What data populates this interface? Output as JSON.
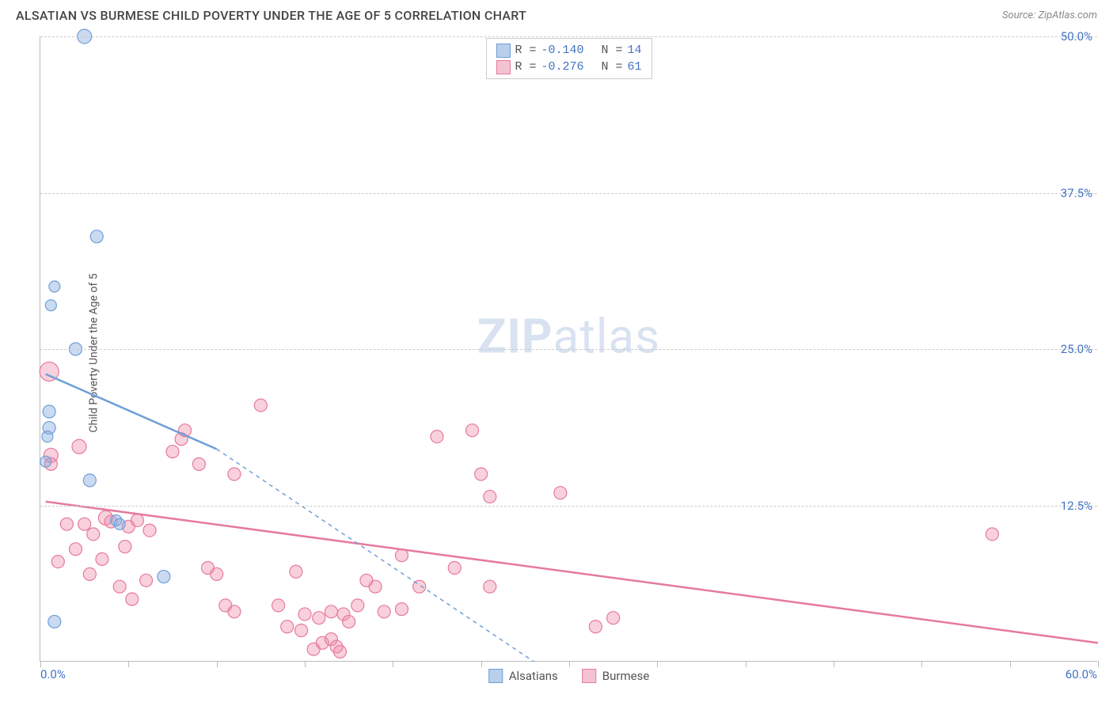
{
  "header": {
    "title": "ALSATIAN VS BURMESE CHILD POVERTY UNDER THE AGE OF 5 CORRELATION CHART",
    "source_prefix": "Source: ",
    "source_name": "ZipAtlas.com"
  },
  "watermark": {
    "bold": "ZIP",
    "rest": "atlas"
  },
  "chart": {
    "type": "scatter",
    "y_axis_label": "Child Poverty Under the Age of 5",
    "xlim": [
      0,
      60
    ],
    "ylim": [
      0,
      50
    ],
    "xtick_step": 5,
    "grid_color": "#cccccc",
    "axis_color": "#bbbbbb",
    "tick_label_color": "#4472c4",
    "background_color": "#ffffff",
    "y_ticks": [
      {
        "v": 50.0,
        "label": "50.0%"
      },
      {
        "v": 37.5,
        "label": "37.5%"
      },
      {
        "v": 25.0,
        "label": "25.0%"
      },
      {
        "v": 12.5,
        "label": "12.5%"
      }
    ],
    "xlim_labels": {
      "min": "0.0%",
      "max": "60.0%"
    }
  },
  "series": {
    "alsatians": {
      "label": "Alsatians",
      "fill": "rgba(137,174,225,0.45)",
      "stroke": "#6f9fd8",
      "swatch_fill": "#b8d0ec",
      "swatch_stroke": "#6f9fd8",
      "R": "-0.140",
      "N": "14",
      "marker_r": 8,
      "trend": {
        "solid": {
          "x1": 0.3,
          "y1": 23.0,
          "x2": 10.0,
          "y2": 17.0
        },
        "dashed": {
          "x1": 10.0,
          "y1": 17.0,
          "x2": 28.0,
          "y2": 0.0
        },
        "width": 2.5
      },
      "points": [
        {
          "x": 2.5,
          "y": 50.0,
          "r": 9
        },
        {
          "x": 3.2,
          "y": 34.0,
          "r": 8
        },
        {
          "x": 0.8,
          "y": 30.0,
          "r": 7
        },
        {
          "x": 0.6,
          "y": 28.5,
          "r": 7
        },
        {
          "x": 2.0,
          "y": 25.0,
          "r": 8
        },
        {
          "x": 0.5,
          "y": 20.0,
          "r": 8
        },
        {
          "x": 0.5,
          "y": 18.7,
          "r": 8
        },
        {
          "x": 0.4,
          "y": 18.0,
          "r": 7
        },
        {
          "x": 0.3,
          "y": 16.0,
          "r": 7
        },
        {
          "x": 2.8,
          "y": 14.5,
          "r": 8
        },
        {
          "x": 4.3,
          "y": 11.3,
          "r": 7
        },
        {
          "x": 4.5,
          "y": 11.0,
          "r": 7
        },
        {
          "x": 7.0,
          "y": 6.8,
          "r": 8
        },
        {
          "x": 0.8,
          "y": 3.2,
          "r": 8
        }
      ]
    },
    "burmese": {
      "label": "Burmese",
      "fill": "rgba(238,140,168,0.40)",
      "stroke": "#e67a9c",
      "swatch_fill": "#f4c3d2",
      "swatch_stroke": "#e67a9c",
      "R": "-0.276",
      "N": "61",
      "marker_r": 8,
      "trend": {
        "solid": {
          "x1": 0.3,
          "y1": 12.8,
          "x2": 60.0,
          "y2": 1.5
        },
        "width": 2.5
      },
      "points": [
        {
          "x": 0.5,
          "y": 23.2,
          "r": 12
        },
        {
          "x": 0.6,
          "y": 16.5,
          "r": 9
        },
        {
          "x": 0.6,
          "y": 15.8,
          "r": 8
        },
        {
          "x": 2.2,
          "y": 17.2,
          "r": 9
        },
        {
          "x": 3.7,
          "y": 11.5,
          "r": 9
        },
        {
          "x": 1.5,
          "y": 11.0,
          "r": 8
        },
        {
          "x": 2.5,
          "y": 11.0,
          "r": 8
        },
        {
          "x": 3.0,
          "y": 10.2,
          "r": 8
        },
        {
          "x": 4.0,
          "y": 11.2,
          "r": 8
        },
        {
          "x": 2.0,
          "y": 9.0,
          "r": 8
        },
        {
          "x": 3.5,
          "y": 8.2,
          "r": 8
        },
        {
          "x": 4.8,
          "y": 9.2,
          "r": 8
        },
        {
          "x": 5.0,
          "y": 10.8,
          "r": 8
        },
        {
          "x": 5.5,
          "y": 11.3,
          "r": 8
        },
        {
          "x": 6.0,
          "y": 6.5,
          "r": 8
        },
        {
          "x": 6.2,
          "y": 10.5,
          "r": 8
        },
        {
          "x": 7.5,
          "y": 16.8,
          "r": 8
        },
        {
          "x": 8.0,
          "y": 17.8,
          "r": 8
        },
        {
          "x": 8.2,
          "y": 18.5,
          "r": 8
        },
        {
          "x": 9.0,
          "y": 15.8,
          "r": 8
        },
        {
          "x": 9.5,
          "y": 7.5,
          "r": 8
        },
        {
          "x": 10.0,
          "y": 7.0,
          "r": 8
        },
        {
          "x": 10.5,
          "y": 4.5,
          "r": 8
        },
        {
          "x": 11.0,
          "y": 15.0,
          "r": 8
        },
        {
          "x": 11.0,
          "y": 4.0,
          "r": 8
        },
        {
          "x": 12.5,
          "y": 20.5,
          "r": 8
        },
        {
          "x": 13.5,
          "y": 4.5,
          "r": 8
        },
        {
          "x": 14.0,
          "y": 2.8,
          "r": 8
        },
        {
          "x": 14.5,
          "y": 7.2,
          "r": 8
        },
        {
          "x": 14.8,
          "y": 2.5,
          "r": 8
        },
        {
          "x": 15.0,
          "y": 3.8,
          "r": 8
        },
        {
          "x": 15.5,
          "y": 1.0,
          "r": 8
        },
        {
          "x": 15.8,
          "y": 3.5,
          "r": 8
        },
        {
          "x": 16.0,
          "y": 1.5,
          "r": 8
        },
        {
          "x": 16.5,
          "y": 4.0,
          "r": 8
        },
        {
          "x": 16.5,
          "y": 1.8,
          "r": 8
        },
        {
          "x": 16.8,
          "y": 1.2,
          "r": 8
        },
        {
          "x": 17.0,
          "y": 0.8,
          "r": 8
        },
        {
          "x": 17.2,
          "y": 3.8,
          "r": 8
        },
        {
          "x": 17.5,
          "y": 3.2,
          "r": 8
        },
        {
          "x": 18.0,
          "y": 4.5,
          "r": 8
        },
        {
          "x": 18.5,
          "y": 6.5,
          "r": 8
        },
        {
          "x": 19.0,
          "y": 6.0,
          "r": 8
        },
        {
          "x": 19.5,
          "y": 4.0,
          "r": 8
        },
        {
          "x": 20.5,
          "y": 8.5,
          "r": 8
        },
        {
          "x": 20.5,
          "y": 4.2,
          "r": 8
        },
        {
          "x": 21.5,
          "y": 6.0,
          "r": 8
        },
        {
          "x": 22.5,
          "y": 18.0,
          "r": 8
        },
        {
          "x": 23.5,
          "y": 7.5,
          "r": 8
        },
        {
          "x": 24.5,
          "y": 18.5,
          "r": 8
        },
        {
          "x": 25.0,
          "y": 15.0,
          "r": 8
        },
        {
          "x": 25.5,
          "y": 13.2,
          "r": 8
        },
        {
          "x": 25.5,
          "y": 6.0,
          "r": 8
        },
        {
          "x": 29.5,
          "y": 13.5,
          "r": 8
        },
        {
          "x": 31.5,
          "y": 2.8,
          "r": 8
        },
        {
          "x": 32.5,
          "y": 3.5,
          "r": 8
        },
        {
          "x": 54.0,
          "y": 10.2,
          "r": 8
        },
        {
          "x": 1.0,
          "y": 8.0,
          "r": 8
        },
        {
          "x": 2.8,
          "y": 7.0,
          "r": 8
        },
        {
          "x": 4.5,
          "y": 6.0,
          "r": 8
        },
        {
          "x": 5.2,
          "y": 5.0,
          "r": 8
        }
      ]
    }
  },
  "stats_labels": {
    "R": "R =",
    "N": "N ="
  }
}
